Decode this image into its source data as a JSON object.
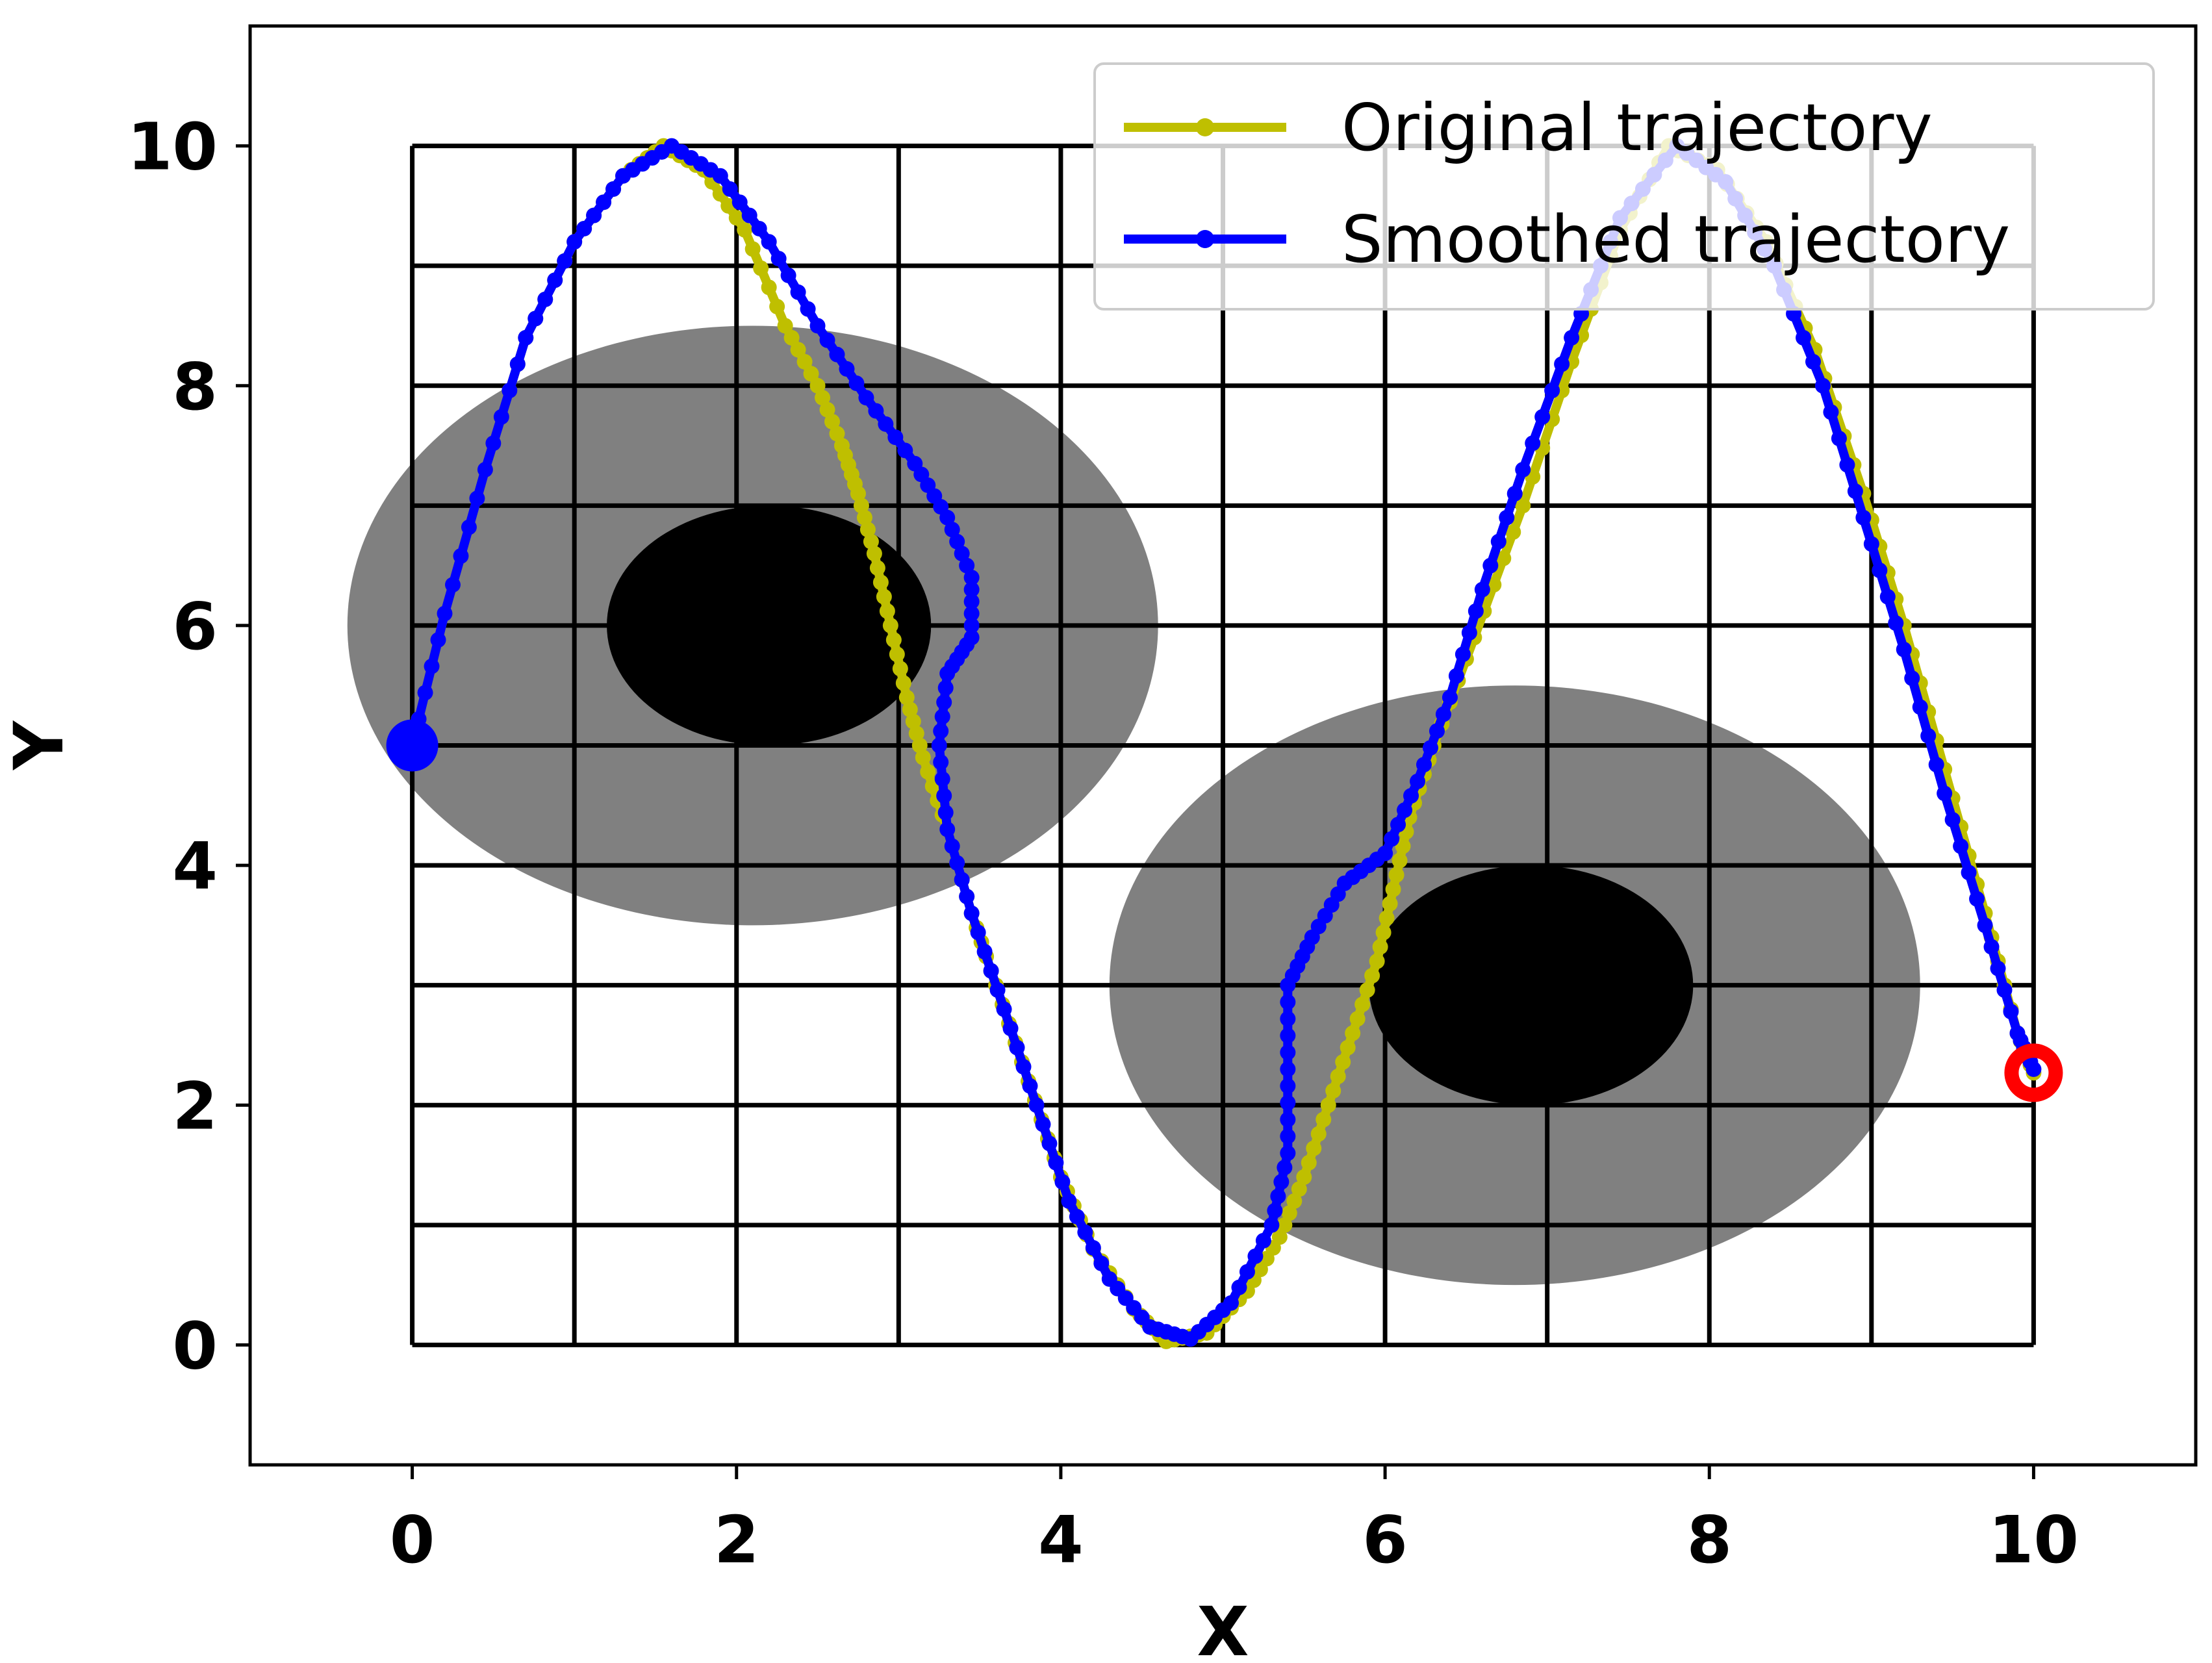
{
  "chart_data": {
    "type": "line",
    "xlabel": "X",
    "ylabel": "Y",
    "xlim": [
      -1,
      11
    ],
    "ylim": [
      -1,
      11
    ],
    "x_ticks": [
      0,
      2,
      4,
      6,
      8,
      10
    ],
    "y_ticks": [
      0,
      2,
      4,
      6,
      8,
      10
    ],
    "grid": {
      "x_lines": [
        0,
        1,
        2,
        3,
        4,
        5,
        6,
        7,
        8,
        9,
        10
      ],
      "y_lines": [
        0,
        1,
        2,
        3,
        4,
        5,
        6,
        7,
        8,
        9,
        10
      ]
    },
    "legend_position": "top-right",
    "obstacles": [
      {
        "center": [
          2.1,
          6.0
        ],
        "rx": 2.5,
        "ry": 2.5,
        "color": "#808080"
      },
      {
        "center": [
          2.2,
          6.0
        ],
        "rx": 1.0,
        "ry": 1.0,
        "color": "#000000"
      },
      {
        "center": [
          6.8,
          3.0
        ],
        "rx": 2.5,
        "ry": 2.5,
        "color": "#808080"
      },
      {
        "center": [
          6.9,
          3.0
        ],
        "rx": 1.0,
        "ry": 1.0,
        "color": "#000000"
      }
    ],
    "start_point": {
      "x": 0,
      "y": 5,
      "color": "#0000ff"
    },
    "goal_point": {
      "x": 10,
      "y": 2.27,
      "color": "#ff0000"
    },
    "series": [
      {
        "name": "Original trajectory",
        "color": "#bfbf00",
        "points": [
          [
            0,
            5.0
          ],
          [
            0.2,
            6.1
          ],
          [
            0.45,
            7.3
          ],
          [
            0.7,
            8.4
          ],
          [
            1.0,
            9.2
          ],
          [
            1.3,
            9.75
          ],
          [
            1.55,
            10.0
          ],
          [
            1.8,
            9.8
          ],
          [
            2.05,
            9.3
          ],
          [
            2.3,
            8.5
          ],
          [
            2.5,
            8.0
          ],
          [
            2.65,
            7.5
          ],
          [
            2.75,
            7.1
          ],
          [
            2.85,
            6.6
          ],
          [
            2.95,
            6.0
          ],
          [
            3.05,
            5.4
          ],
          [
            3.15,
            4.9
          ],
          [
            3.3,
            4.3
          ],
          [
            3.45,
            3.6
          ],
          [
            3.6,
            3.0
          ],
          [
            3.8,
            2.2
          ],
          [
            4.0,
            1.4
          ],
          [
            4.2,
            0.8
          ],
          [
            4.45,
            0.3
          ],
          [
            4.65,
            0.03
          ],
          [
            4.9,
            0.1
          ],
          [
            5.15,
            0.45
          ],
          [
            5.35,
            0.9
          ],
          [
            5.5,
            1.4
          ],
          [
            5.65,
            2.0
          ],
          [
            5.8,
            2.6
          ],
          [
            5.95,
            3.2
          ],
          [
            6.05,
            3.8
          ],
          [
            6.15,
            4.4
          ],
          [
            6.3,
            5.0
          ],
          [
            6.55,
            5.9
          ],
          [
            6.85,
            7.0
          ],
          [
            7.15,
            8.2
          ],
          [
            7.45,
            9.3
          ],
          [
            7.75,
            10.0
          ],
          [
            8.05,
            9.8
          ],
          [
            8.35,
            9.2
          ],
          [
            8.65,
            8.3
          ],
          [
            8.95,
            7.1
          ],
          [
            9.2,
            6.0
          ],
          [
            9.45,
            4.8
          ],
          [
            9.7,
            3.6
          ],
          [
            9.9,
            2.6
          ],
          [
            10.0,
            2.27
          ]
        ]
      },
      {
        "name": "Smoothed trajectory",
        "color": "#0000ff",
        "points": [
          [
            0,
            5.0
          ],
          [
            0.2,
            6.1
          ],
          [
            0.45,
            7.3
          ],
          [
            0.7,
            8.4
          ],
          [
            1.0,
            9.2
          ],
          [
            1.3,
            9.75
          ],
          [
            1.6,
            10.0
          ],
          [
            1.9,
            9.75
          ],
          [
            2.2,
            9.2
          ],
          [
            2.5,
            8.5
          ],
          [
            2.8,
            7.9
          ],
          [
            3.1,
            7.35
          ],
          [
            3.3,
            6.9
          ],
          [
            3.45,
            6.4
          ],
          [
            3.45,
            5.9
          ],
          [
            3.3,
            5.6
          ],
          [
            3.25,
            5.0
          ],
          [
            3.3,
            4.3
          ],
          [
            3.45,
            3.6
          ],
          [
            3.65,
            2.8
          ],
          [
            3.85,
            2.0
          ],
          [
            4.05,
            1.2
          ],
          [
            4.3,
            0.55
          ],
          [
            4.55,
            0.15
          ],
          [
            4.8,
            0.05
          ],
          [
            5.05,
            0.35
          ],
          [
            5.3,
            1.0
          ],
          [
            5.4,
            1.6
          ],
          [
            5.4,
            2.3
          ],
          [
            5.4,
            3.0
          ],
          [
            5.55,
            3.4
          ],
          [
            5.75,
            3.85
          ],
          [
            6.0,
            4.1
          ],
          [
            6.2,
            4.7
          ],
          [
            6.4,
            5.4
          ],
          [
            6.6,
            6.3
          ],
          [
            6.85,
            7.3
          ],
          [
            7.15,
            8.4
          ],
          [
            7.45,
            9.4
          ],
          [
            7.8,
            10.0
          ],
          [
            8.1,
            9.7
          ],
          [
            8.4,
            9.0
          ],
          [
            8.7,
            8.0
          ],
          [
            8.95,
            6.9
          ],
          [
            9.2,
            5.8
          ],
          [
            9.45,
            4.6
          ],
          [
            9.7,
            3.5
          ],
          [
            9.9,
            2.6
          ],
          [
            10.0,
            2.3
          ]
        ]
      }
    ]
  }
}
